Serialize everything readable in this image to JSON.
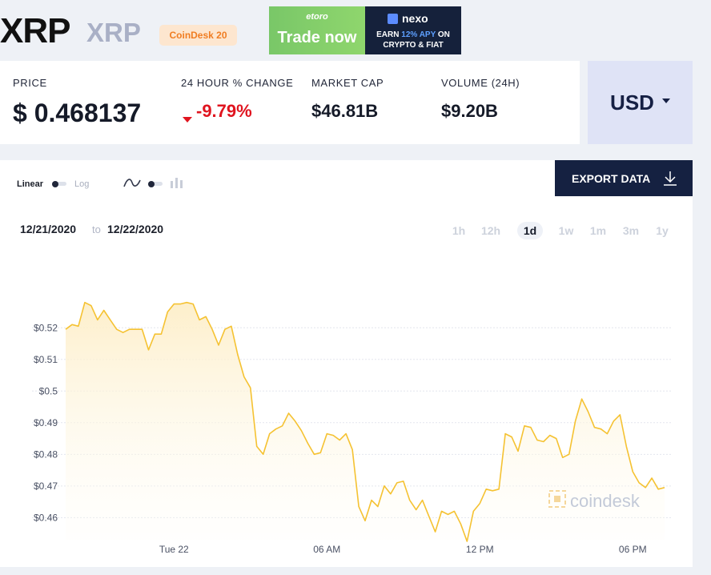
{
  "header": {
    "title": "XRP",
    "subtitle": "XRP",
    "badge": "CoinDesk 20"
  },
  "ads": {
    "etoro": {
      "logo": "etoro",
      "cta": "Trade now"
    },
    "nexo": {
      "logo": "nexo",
      "line1_pre": "EARN ",
      "line1_apy": "12% APY",
      "line1_post": " ON",
      "line2": "CRYPTO & FIAT"
    }
  },
  "stats": {
    "price_label": "PRICE",
    "price_value": "$ 0.468137",
    "change_label": "24 HOUR % CHANGE",
    "change_value": "-9.79%",
    "market_cap_label": "MARKET CAP",
    "market_cap_value": "$46.81B",
    "volume_label": "VOLUME (24H)",
    "volume_value": "$9.20B"
  },
  "currency": {
    "selected": "USD"
  },
  "chart_controls": {
    "linear_label": "Linear",
    "log_label": "Log",
    "export_label": "EXPORT DATA",
    "range_from": "12/21/2020",
    "range_sep": "to",
    "range_to": "12/22/2020",
    "timeframes": [
      "1h",
      "12h",
      "1d",
      "1w",
      "1m",
      "3m",
      "1y"
    ],
    "active_timeframe": "1d"
  },
  "watermark": "coindesk",
  "colors": {
    "line": "#f5c232",
    "area_top": "#fdeec8",
    "negative": "#e0141f",
    "export_bg": "#152141",
    "currency_bg": "#dfe3f6"
  },
  "chart_data": {
    "type": "area",
    "title": "",
    "xlabel": "",
    "ylabel": "",
    "x_ticks": [
      {
        "label": "Tue 22",
        "hour": 0
      },
      {
        "label": "06 AM",
        "hour": 6
      },
      {
        "label": "12 PM",
        "hour": 12
      },
      {
        "label": "06 PM",
        "hour": 18
      }
    ],
    "xlim": [
      -4.25,
      19.5
    ],
    "ylim": [
      0.453,
      0.535
    ],
    "y_ticks": [
      0.46,
      0.47,
      0.48,
      0.49,
      0.5,
      0.51,
      0.52
    ],
    "y_tick_labels": [
      "$0.46",
      "$0.47",
      "$0.48",
      "$0.49",
      "$0.5",
      "$0.51",
      "$0.52"
    ],
    "grid": true,
    "series": [
      {
        "name": "",
        "points": [
          [
            -4.25,
            0.5195
          ],
          [
            -4.0,
            0.521
          ],
          [
            -3.75,
            0.5205
          ],
          [
            -3.5,
            0.528
          ],
          [
            -3.25,
            0.527
          ],
          [
            -3.0,
            0.5225
          ],
          [
            -2.75,
            0.5255
          ],
          [
            -2.5,
            0.5225
          ],
          [
            -2.25,
            0.5195
          ],
          [
            -2.0,
            0.5185
          ],
          [
            -1.75,
            0.5195
          ],
          [
            -1.25,
            0.5195
          ],
          [
            -1.0,
            0.513
          ],
          [
            -0.75,
            0.518
          ],
          [
            -0.5,
            0.518
          ],
          [
            -0.25,
            0.525
          ],
          [
            0.0,
            0.5275
          ],
          [
            0.25,
            0.5275
          ],
          [
            0.5,
            0.528
          ],
          [
            0.75,
            0.5275
          ],
          [
            1.0,
            0.5225
          ],
          [
            1.25,
            0.5235
          ],
          [
            1.5,
            0.5195
          ],
          [
            1.75,
            0.5145
          ],
          [
            2.0,
            0.5195
          ],
          [
            2.25,
            0.5205
          ],
          [
            2.5,
            0.5115
          ],
          [
            2.75,
            0.5045
          ],
          [
            3.0,
            0.501
          ],
          [
            3.25,
            0.4825
          ],
          [
            3.5,
            0.48
          ],
          [
            3.75,
            0.4865
          ],
          [
            4.0,
            0.488
          ],
          [
            4.25,
            0.489
          ],
          [
            4.5,
            0.493
          ],
          [
            4.75,
            0.4905
          ],
          [
            5.0,
            0.4875
          ],
          [
            5.25,
            0.4835
          ],
          [
            5.5,
            0.48
          ],
          [
            5.75,
            0.4805
          ],
          [
            6.0,
            0.4865
          ],
          [
            6.25,
            0.486
          ],
          [
            6.5,
            0.4845
          ],
          [
            6.75,
            0.4865
          ],
          [
            7.0,
            0.4815
          ],
          [
            7.25,
            0.4635
          ],
          [
            7.5,
            0.459
          ],
          [
            7.75,
            0.4655
          ],
          [
            8.0,
            0.4635
          ],
          [
            8.25,
            0.47
          ],
          [
            8.5,
            0.4675
          ],
          [
            8.75,
            0.471
          ],
          [
            9.0,
            0.4715
          ],
          [
            9.25,
            0.4655
          ],
          [
            9.5,
            0.4625
          ],
          [
            9.75,
            0.4655
          ],
          [
            10.0,
            0.4605
          ],
          [
            10.25,
            0.4555
          ],
          [
            10.5,
            0.462
          ],
          [
            10.75,
            0.461
          ],
          [
            11.0,
            0.462
          ],
          [
            11.25,
            0.458
          ],
          [
            11.5,
            0.4525
          ],
          [
            11.75,
            0.462
          ],
          [
            12.0,
            0.4645
          ],
          [
            12.25,
            0.469
          ],
          [
            12.5,
            0.4685
          ],
          [
            12.75,
            0.469
          ],
          [
            13.0,
            0.4865
          ],
          [
            13.25,
            0.4855
          ],
          [
            13.5,
            0.481
          ],
          [
            13.75,
            0.489
          ],
          [
            14.0,
            0.4885
          ],
          [
            14.25,
            0.4845
          ],
          [
            14.5,
            0.484
          ],
          [
            14.75,
            0.486
          ],
          [
            15.0,
            0.485
          ],
          [
            15.25,
            0.479
          ],
          [
            15.5,
            0.48
          ],
          [
            15.75,
            0.4905
          ],
          [
            16.0,
            0.4975
          ],
          [
            16.25,
            0.4935
          ],
          [
            16.5,
            0.4885
          ],
          [
            16.75,
            0.488
          ],
          [
            17.0,
            0.4865
          ],
          [
            17.25,
            0.4905
          ],
          [
            17.5,
            0.4925
          ],
          [
            17.75,
            0.4825
          ],
          [
            18.0,
            0.4745
          ],
          [
            18.25,
            0.471
          ],
          [
            18.5,
            0.4695
          ],
          [
            18.75,
            0.4725
          ],
          [
            19.0,
            0.469
          ],
          [
            19.25,
            0.4695
          ]
        ]
      }
    ]
  }
}
